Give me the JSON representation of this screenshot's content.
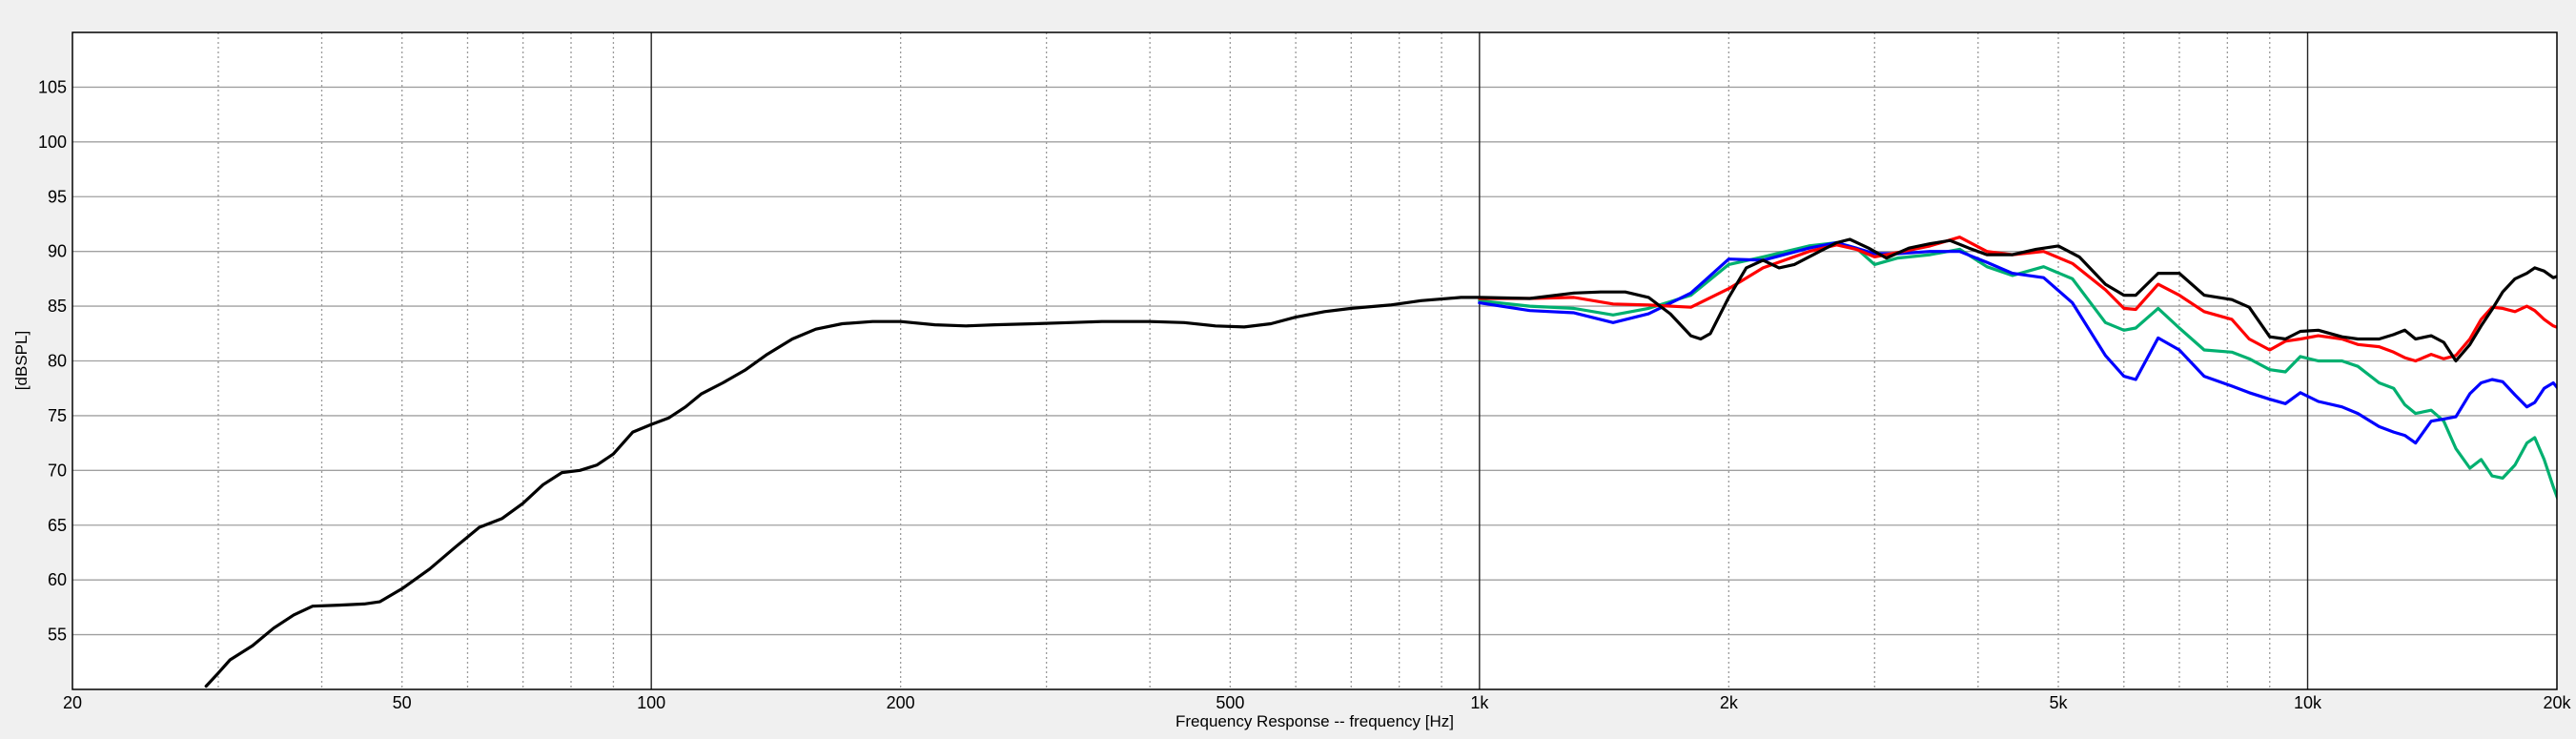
{
  "chart_data": {
    "type": "line",
    "title": "",
    "xlabel": "Frequency Response -- frequency [Hz]",
    "ylabel": "[dBSPL]",
    "x_scale": "log",
    "xlim": [
      20,
      20000
    ],
    "ylim": [
      50,
      110
    ],
    "grid": true,
    "legend": "none",
    "x_ticks": [
      {
        "value": 20,
        "label": "20"
      },
      {
        "value": 50,
        "label": "50"
      },
      {
        "value": 100,
        "label": "100"
      },
      {
        "value": 200,
        "label": "200"
      },
      {
        "value": 500,
        "label": "500"
      },
      {
        "value": 1000,
        "label": "1k"
      },
      {
        "value": 2000,
        "label": "2k"
      },
      {
        "value": 5000,
        "label": "5k"
      },
      {
        "value": 10000,
        "label": "10k"
      },
      {
        "value": 20000,
        "label": "20k"
      }
    ],
    "y_ticks": [
      {
        "value": 55,
        "label": "55"
      },
      {
        "value": 60,
        "label": "60"
      },
      {
        "value": 65,
        "label": "65"
      },
      {
        "value": 70,
        "label": "70"
      },
      {
        "value": 75,
        "label": "75"
      },
      {
        "value": 80,
        "label": "80"
      },
      {
        "value": 85,
        "label": "85"
      },
      {
        "value": 90,
        "label": "90"
      },
      {
        "value": 95,
        "label": "95"
      },
      {
        "value": 100,
        "label": "100"
      },
      {
        "value": 105,
        "label": "105"
      }
    ],
    "series": [
      {
        "color": "#00b070",
        "points": [
          [
            1000,
            85.5
          ],
          [
            1150,
            85.0
          ],
          [
            1300,
            84.8
          ],
          [
            1450,
            84.2
          ],
          [
            1600,
            84.8
          ],
          [
            1800,
            86.0
          ],
          [
            2000,
            88.8
          ],
          [
            2200,
            89.5
          ],
          [
            2500,
            90.5
          ],
          [
            2700,
            90.8
          ],
          [
            2850,
            90.3
          ],
          [
            3000,
            88.8
          ],
          [
            3200,
            89.4
          ],
          [
            3500,
            89.7
          ],
          [
            3800,
            90.2
          ],
          [
            4100,
            88.6
          ],
          [
            4400,
            87.8
          ],
          [
            4800,
            88.6
          ],
          [
            5200,
            87.5
          ],
          [
            5700,
            83.5
          ],
          [
            6000,
            82.8
          ],
          [
            6200,
            83.0
          ],
          [
            6600,
            84.8
          ],
          [
            7000,
            83.0
          ],
          [
            7500,
            81.0
          ],
          [
            8100,
            80.8
          ],
          [
            8500,
            80.2
          ],
          [
            9000,
            79.2
          ],
          [
            9400,
            79.0
          ],
          [
            9800,
            80.4
          ],
          [
            10300,
            80.0
          ],
          [
            11000,
            80.0
          ],
          [
            11500,
            79.5
          ],
          [
            12200,
            78.0
          ],
          [
            12700,
            77.5
          ],
          [
            13100,
            76.0
          ],
          [
            13500,
            75.2
          ],
          [
            14100,
            75.5
          ],
          [
            14600,
            74.5
          ],
          [
            15100,
            72.0
          ],
          [
            15700,
            70.2
          ],
          [
            16200,
            71.0
          ],
          [
            16700,
            69.5
          ],
          [
            17200,
            69.3
          ],
          [
            17800,
            70.5
          ],
          [
            18400,
            72.5
          ],
          [
            18800,
            73.0
          ],
          [
            19300,
            71.0
          ],
          [
            19800,
            68.5
          ],
          [
            20300,
            66.3
          ],
          [
            21000,
            65.7
          ],
          [
            21700,
            67.3
          ],
          [
            22500,
            68.5
          ],
          [
            23200,
            70.0
          ]
        ]
      },
      {
        "color": "#0000ff",
        "points": [
          [
            1000,
            85.3
          ],
          [
            1150,
            84.6
          ],
          [
            1300,
            84.4
          ],
          [
            1450,
            83.5
          ],
          [
            1600,
            84.3
          ],
          [
            1800,
            86.2
          ],
          [
            2000,
            89.3
          ],
          [
            2200,
            89.2
          ],
          [
            2500,
            90.3
          ],
          [
            2700,
            90.8
          ],
          [
            2850,
            90.3
          ],
          [
            3000,
            89.8
          ],
          [
            3200,
            89.8
          ],
          [
            3500,
            90.0
          ],
          [
            3800,
            90.0
          ],
          [
            4100,
            89.0
          ],
          [
            4400,
            88.0
          ],
          [
            4800,
            87.6
          ],
          [
            5200,
            85.3
          ],
          [
            5700,
            80.5
          ],
          [
            6000,
            78.6
          ],
          [
            6200,
            78.3
          ],
          [
            6600,
            82.1
          ],
          [
            7000,
            81.0
          ],
          [
            7500,
            78.6
          ],
          [
            8100,
            77.7
          ],
          [
            8500,
            77.1
          ],
          [
            9000,
            76.5
          ],
          [
            9400,
            76.1
          ],
          [
            9800,
            77.1
          ],
          [
            10300,
            76.3
          ],
          [
            11000,
            75.8
          ],
          [
            11500,
            75.2
          ],
          [
            12200,
            74.0
          ],
          [
            12700,
            73.5
          ],
          [
            13100,
            73.2
          ],
          [
            13500,
            72.5
          ],
          [
            14100,
            74.5
          ],
          [
            14600,
            74.7
          ],
          [
            15100,
            74.9
          ],
          [
            15700,
            77.0
          ],
          [
            16200,
            78.0
          ],
          [
            16700,
            78.3
          ],
          [
            17200,
            78.1
          ],
          [
            17800,
            76.9
          ],
          [
            18400,
            75.8
          ],
          [
            18800,
            76.2
          ],
          [
            19300,
            77.5
          ],
          [
            19800,
            78.0
          ],
          [
            20300,
            77.0
          ],
          [
            21000,
            75.4
          ],
          [
            21700,
            74.3
          ],
          [
            22500,
            72.8
          ],
          [
            23200,
            72.5
          ]
        ]
      },
      {
        "color": "#ff0000",
        "points": [
          [
            1000,
            85.7
          ],
          [
            1150,
            85.7
          ],
          [
            1300,
            85.8
          ],
          [
            1450,
            85.2
          ],
          [
            1600,
            85.1
          ],
          [
            1800,
            84.9
          ],
          [
            2000,
            86.6
          ],
          [
            2200,
            88.5
          ],
          [
            2500,
            90.0
          ],
          [
            2700,
            90.6
          ],
          [
            2850,
            90.2
          ],
          [
            3000,
            89.5
          ],
          [
            3200,
            89.9
          ],
          [
            3500,
            90.5
          ],
          [
            3800,
            91.3
          ],
          [
            4100,
            90.0
          ],
          [
            4400,
            89.7
          ],
          [
            4800,
            90.0
          ],
          [
            5200,
            88.9
          ],
          [
            5700,
            86.5
          ],
          [
            6000,
            84.8
          ],
          [
            6200,
            84.7
          ],
          [
            6600,
            87.0
          ],
          [
            7000,
            86.0
          ],
          [
            7500,
            84.5
          ],
          [
            8100,
            83.8
          ],
          [
            8500,
            82.0
          ],
          [
            9000,
            81.0
          ],
          [
            9400,
            81.8
          ],
          [
            9800,
            82.0
          ],
          [
            10300,
            82.3
          ],
          [
            11000,
            82.0
          ],
          [
            11500,
            81.5
          ],
          [
            12200,
            81.3
          ],
          [
            12700,
            80.8
          ],
          [
            13100,
            80.3
          ],
          [
            13500,
            80.0
          ],
          [
            14100,
            80.6
          ],
          [
            14600,
            80.2
          ],
          [
            15100,
            80.5
          ],
          [
            15700,
            82.0
          ],
          [
            16200,
            83.8
          ],
          [
            16700,
            84.9
          ],
          [
            17200,
            84.8
          ],
          [
            17800,
            84.5
          ],
          [
            18400,
            85.0
          ],
          [
            18800,
            84.6
          ],
          [
            19300,
            83.8
          ],
          [
            19800,
            83.2
          ],
          [
            20300,
            82.9
          ],
          [
            21000,
            83.0
          ],
          [
            21700,
            83.2
          ],
          [
            22500,
            83.8
          ],
          [
            23200,
            84.0
          ]
        ]
      },
      {
        "color": "#000000",
        "points": [
          [
            29,
            50.3
          ],
          [
            30,
            51.5
          ],
          [
            31,
            52.7
          ],
          [
            33,
            54.0
          ],
          [
            35,
            55.6
          ],
          [
            37,
            56.8
          ],
          [
            39,
            57.6
          ],
          [
            42,
            57.7
          ],
          [
            45,
            57.8
          ],
          [
            47,
            58.0
          ],
          [
            50,
            59.2
          ],
          [
            54,
            61.0
          ],
          [
            58,
            63.0
          ],
          [
            62,
            64.8
          ],
          [
            66,
            65.6
          ],
          [
            70,
            67.0
          ],
          [
            74,
            68.7
          ],
          [
            78,
            69.8
          ],
          [
            82,
            70.0
          ],
          [
            86,
            70.5
          ],
          [
            90,
            71.5
          ],
          [
            95,
            73.5
          ],
          [
            100,
            74.2
          ],
          [
            105,
            74.8
          ],
          [
            110,
            75.8
          ],
          [
            115,
            77.0
          ],
          [
            122,
            78.0
          ],
          [
            130,
            79.2
          ],
          [
            138,
            80.6
          ],
          [
            148,
            82.0
          ],
          [
            158,
            82.9
          ],
          [
            170,
            83.4
          ],
          [
            185,
            83.6
          ],
          [
            200,
            83.6
          ],
          [
            220,
            83.3
          ],
          [
            240,
            83.2
          ],
          [
            260,
            83.3
          ],
          [
            290,
            83.4
          ],
          [
            320,
            83.5
          ],
          [
            350,
            83.6
          ],
          [
            400,
            83.6
          ],
          [
            440,
            83.5
          ],
          [
            480,
            83.2
          ],
          [
            520,
            83.1
          ],
          [
            560,
            83.4
          ],
          [
            600,
            84.0
          ],
          [
            650,
            84.5
          ],
          [
            700,
            84.8
          ],
          [
            780,
            85.1
          ],
          [
            850,
            85.5
          ],
          [
            950,
            85.8
          ],
          [
            1000,
            85.8
          ],
          [
            1150,
            85.7
          ],
          [
            1300,
            86.2
          ],
          [
            1400,
            86.3
          ],
          [
            1500,
            86.3
          ],
          [
            1600,
            85.8
          ],
          [
            1700,
            84.3
          ],
          [
            1800,
            82.3
          ],
          [
            1850,
            82.0
          ],
          [
            1900,
            82.5
          ],
          [
            2000,
            85.8
          ],
          [
            2100,
            88.5
          ],
          [
            2200,
            89.2
          ],
          [
            2300,
            88.5
          ],
          [
            2400,
            88.8
          ],
          [
            2500,
            89.5
          ],
          [
            2700,
            90.8
          ],
          [
            2800,
            91.1
          ],
          [
            2950,
            90.3
          ],
          [
            3100,
            89.4
          ],
          [
            3300,
            90.3
          ],
          [
            3500,
            90.7
          ],
          [
            3700,
            91.0
          ],
          [
            3900,
            90.3
          ],
          [
            4100,
            89.7
          ],
          [
            4400,
            89.7
          ],
          [
            4700,
            90.2
          ],
          [
            5000,
            90.5
          ],
          [
            5300,
            89.5
          ],
          [
            5700,
            87.0
          ],
          [
            6000,
            86.0
          ],
          [
            6200,
            86.0
          ],
          [
            6600,
            88.0
          ],
          [
            7000,
            88.0
          ],
          [
            7500,
            86.0
          ],
          [
            8100,
            85.6
          ],
          [
            8500,
            84.9
          ],
          [
            9000,
            82.2
          ],
          [
            9400,
            82.0
          ],
          [
            9800,
            82.7
          ],
          [
            10300,
            82.8
          ],
          [
            11000,
            82.2
          ],
          [
            11500,
            82.0
          ],
          [
            12200,
            82.0
          ],
          [
            12700,
            82.4
          ],
          [
            13100,
            82.8
          ],
          [
            13500,
            82.0
          ],
          [
            14100,
            82.3
          ],
          [
            14600,
            81.7
          ],
          [
            15100,
            80.0
          ],
          [
            15700,
            81.5
          ],
          [
            16200,
            83.2
          ],
          [
            16700,
            84.7
          ],
          [
            17200,
            86.3
          ],
          [
            17800,
            87.5
          ],
          [
            18400,
            88.0
          ],
          [
            18800,
            88.5
          ],
          [
            19300,
            88.2
          ],
          [
            19800,
            87.6
          ],
          [
            20300,
            87.9
          ],
          [
            21000,
            88.5
          ],
          [
            21700,
            89.3
          ],
          [
            22500,
            90.3
          ],
          [
            23200,
            90.3
          ]
        ]
      }
    ]
  }
}
